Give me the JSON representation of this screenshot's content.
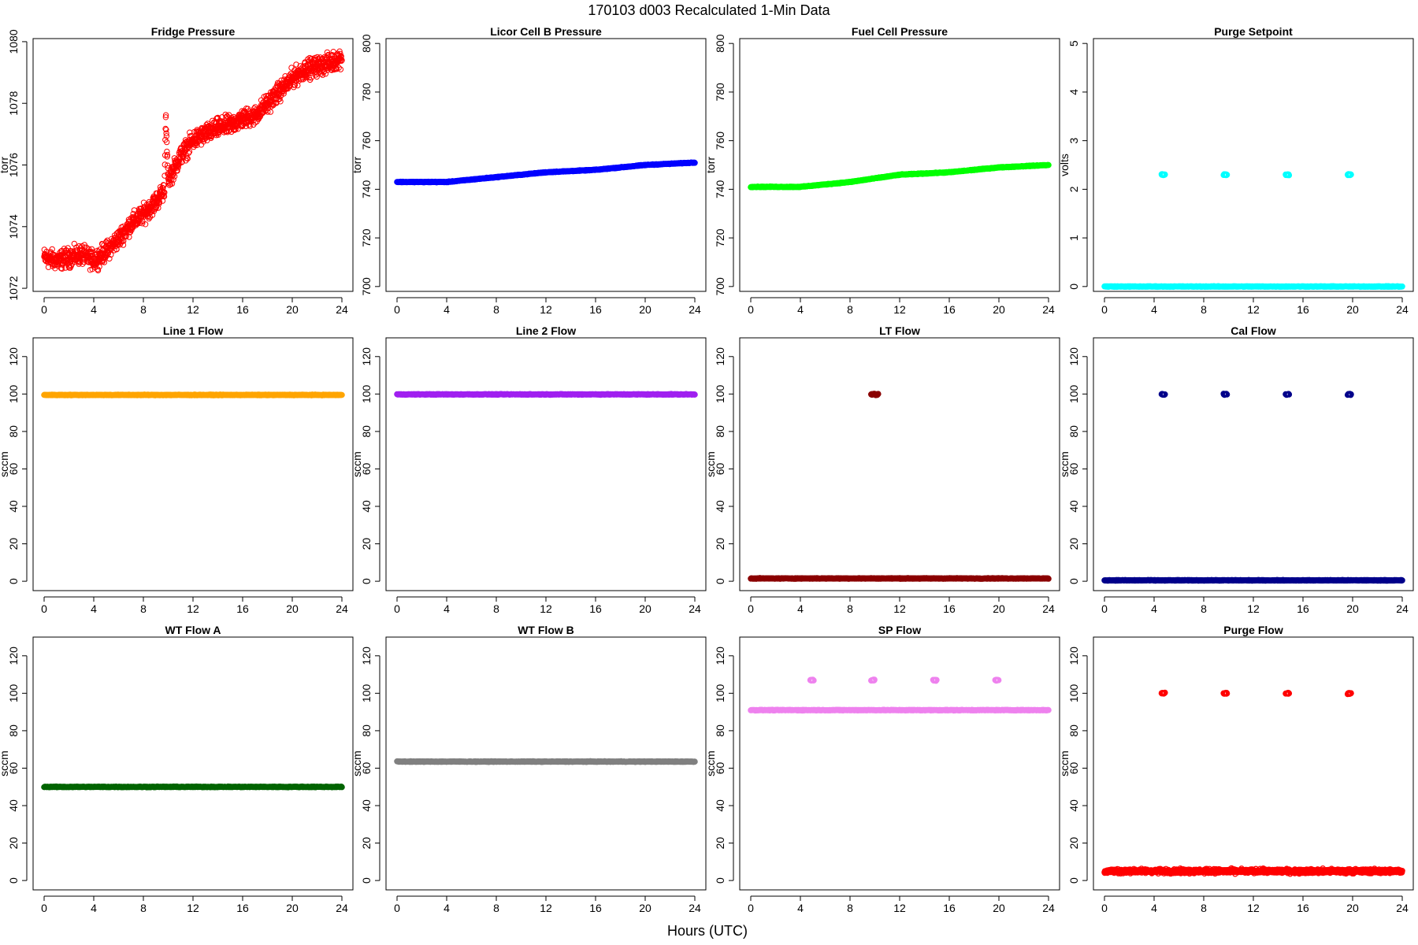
{
  "figure": {
    "title": "170103   d003   Recalculated 1-Min Data",
    "xlabel": "Hours (UTC)"
  },
  "chart_data": [
    {
      "type": "scatter",
      "title": "Fridge Pressure",
      "ylabel": "torr",
      "color": "#ff0000",
      "marker": "open-circle",
      "xlim": [
        0,
        24
      ],
      "ylim": [
        1071.9,
        1080.1
      ],
      "xticks": [
        0,
        4,
        8,
        12,
        16,
        20,
        24
      ],
      "yticks": [
        1072,
        1074,
        1076,
        1078,
        1080
      ],
      "series": [
        {
          "x": [
            0,
            1,
            2,
            3,
            4,
            5,
            6,
            7,
            8,
            9,
            9.7,
            9.8,
            10,
            11,
            12,
            13,
            14,
            15,
            16,
            17,
            18,
            19,
            20,
            21,
            22,
            23,
            24
          ],
          "values": [
            1073.0,
            1072.9,
            1073.0,
            1073.1,
            1072.9,
            1073.2,
            1073.6,
            1074.1,
            1074.4,
            1074.8,
            1075.2,
            1077.6,
            1075.5,
            1076.3,
            1076.8,
            1077.0,
            1077.2,
            1077.3,
            1077.5,
            1077.6,
            1078.0,
            1078.4,
            1078.8,
            1079.1,
            1079.2,
            1079.3,
            1079.5
          ]
        }
      ]
    },
    {
      "type": "scatter",
      "title": "Licor Cell B Pressure",
      "ylabel": "torr",
      "color": "#0000ff",
      "marker": "open-circle",
      "xlim": [
        0,
        24
      ],
      "ylim": [
        698,
        802
      ],
      "xticks": [
        0,
        4,
        8,
        12,
        16,
        20,
        24
      ],
      "yticks": [
        700,
        720,
        740,
        760,
        780,
        800
      ],
      "series": [
        {
          "x": [
            0,
            4,
            8,
            12,
            16,
            20,
            24
          ],
          "values": [
            743,
            743,
            745,
            747,
            748,
            750,
            751
          ]
        }
      ]
    },
    {
      "type": "scatter",
      "title": "Fuel Cell Pressure",
      "ylabel": "torr",
      "color": "#00ff00",
      "marker": "open-circle",
      "xlim": [
        0,
        24
      ],
      "ylim": [
        698,
        802
      ],
      "xticks": [
        0,
        4,
        8,
        12,
        16,
        20,
        24
      ],
      "yticks": [
        700,
        720,
        740,
        760,
        780,
        800
      ],
      "series": [
        {
          "x": [
            0,
            4,
            8,
            12,
            16,
            20,
            24
          ],
          "values": [
            741,
            741,
            743,
            746,
            747,
            749,
            750
          ]
        }
      ]
    },
    {
      "type": "scatter",
      "title": "Purge Setpoint",
      "ylabel": "volts",
      "color": "#00ffff",
      "marker": "open-circle",
      "xlim": [
        0,
        24
      ],
      "ylim": [
        -0.1,
        5.1
      ],
      "xticks": [
        0,
        4,
        8,
        12,
        16,
        20,
        24
      ],
      "yticks": [
        0,
        1,
        2,
        3,
        4,
        5
      ],
      "series": [
        {
          "x": [
            0,
            4,
            8,
            12,
            16,
            20,
            24
          ],
          "values": [
            0,
            0,
            0,
            0,
            0,
            0,
            0
          ]
        },
        {
          "x": [
            4.6,
            9.6,
            14.6,
            19.6
          ],
          "values": [
            2.3,
            2.3,
            2.3,
            2.3
          ]
        }
      ]
    },
    {
      "type": "scatter",
      "title": "Line 1 Flow",
      "ylabel": "sccm",
      "color": "#ffa500",
      "marker": "open-circle",
      "xlim": [
        0,
        24
      ],
      "ylim": [
        -5,
        130
      ],
      "xticks": [
        0,
        4,
        8,
        12,
        16,
        20,
        24
      ],
      "yticks": [
        0,
        20,
        40,
        60,
        80,
        100,
        120
      ],
      "series": [
        {
          "x": [
            0,
            24
          ],
          "values": [
            99.5,
            99.5
          ]
        }
      ]
    },
    {
      "type": "scatter",
      "title": "Line 2 Flow",
      "ylabel": "sccm",
      "color": "#a020f0",
      "marker": "open-circle",
      "xlim": [
        0,
        24
      ],
      "ylim": [
        -5,
        130
      ],
      "xticks": [
        0,
        4,
        8,
        12,
        16,
        20,
        24
      ],
      "yticks": [
        0,
        20,
        40,
        60,
        80,
        100,
        120
      ],
      "series": [
        {
          "x": [
            0,
            24
          ],
          "values": [
            99.8,
            99.8
          ]
        }
      ]
    },
    {
      "type": "scatter",
      "title": "LT Flow",
      "ylabel": "sccm",
      "color": "#8b0000",
      "marker": "open-circle",
      "xlim": [
        0,
        24
      ],
      "ylim": [
        -5,
        130
      ],
      "xticks": [
        0,
        4,
        8,
        12,
        16,
        20,
        24
      ],
      "yticks": [
        0,
        20,
        40,
        60,
        80,
        100,
        120
      ],
      "series": [
        {
          "x": [
            0,
            24
          ],
          "values": [
            1.5,
            1.5
          ]
        },
        {
          "x": [
            9.7,
            10.0
          ],
          "values": [
            99.8,
            99.8
          ]
        }
      ]
    },
    {
      "type": "scatter",
      "title": "Cal Flow",
      "ylabel": "sccm",
      "color": "#00008b",
      "marker": "open-circle",
      "xlim": [
        0,
        24
      ],
      "ylim": [
        -5,
        130
      ],
      "xticks": [
        0,
        4,
        8,
        12,
        16,
        20,
        24
      ],
      "yticks": [
        0,
        20,
        40,
        60,
        80,
        100,
        120
      ],
      "series": [
        {
          "x": [
            0,
            24
          ],
          "values": [
            0.5,
            0.5
          ]
        },
        {
          "x": [
            4.6,
            9.6,
            14.6,
            19.6
          ],
          "values": [
            99.8,
            99.8,
            99.8,
            99.8
          ]
        }
      ]
    },
    {
      "type": "scatter",
      "title": "WT Flow A",
      "ylabel": "sccm",
      "color": "#006400",
      "marker": "open-circle",
      "xlim": [
        0,
        24
      ],
      "ylim": [
        -5,
        130
      ],
      "xticks": [
        0,
        4,
        8,
        12,
        16,
        20,
        24
      ],
      "yticks": [
        0,
        20,
        40,
        60,
        80,
        100,
        120
      ],
      "series": [
        {
          "x": [
            0,
            24
          ],
          "values": [
            50,
            50
          ]
        }
      ]
    },
    {
      "type": "scatter",
      "title": "WT Flow B",
      "ylabel": "sccm",
      "color": "#808080",
      "marker": "open-circle",
      "xlim": [
        0,
        24
      ],
      "ylim": [
        -5,
        130
      ],
      "xticks": [
        0,
        4,
        8,
        12,
        16,
        20,
        24
      ],
      "yticks": [
        0,
        20,
        40,
        60,
        80,
        100,
        120
      ],
      "series": [
        {
          "x": [
            0,
            24
          ],
          "values": [
            63.5,
            63.5
          ]
        }
      ]
    },
    {
      "type": "scatter",
      "title": "SP Flow",
      "ylabel": "sccm",
      "color": "#ee82ee",
      "marker": "open-circle",
      "xlim": [
        0,
        24
      ],
      "ylim": [
        -5,
        130
      ],
      "xticks": [
        0,
        4,
        8,
        12,
        16,
        20,
        24
      ],
      "yticks": [
        0,
        20,
        40,
        60,
        80,
        100,
        120
      ],
      "series": [
        {
          "x": [
            0,
            24
          ],
          "values": [
            91,
            91
          ]
        },
        {
          "x": [
            4.8,
            9.7,
            14.7,
            19.7
          ],
          "values": [
            107,
            107,
            107,
            107
          ]
        }
      ]
    },
    {
      "type": "scatter",
      "title": "Purge Flow",
      "ylabel": "sccm",
      "color": "#ff0000",
      "marker": "open-circle",
      "xlim": [
        0,
        24
      ],
      "ylim": [
        -5,
        130
      ],
      "xticks": [
        0,
        4,
        8,
        12,
        16,
        20,
        24
      ],
      "yticks": [
        0,
        20,
        40,
        60,
        80,
        100,
        120
      ],
      "series": [
        {
          "x": [
            0,
            24
          ],
          "values": [
            5,
            5
          ]
        },
        {
          "x": [
            4.6,
            9.6,
            14.6,
            19.6
          ],
          "values": [
            100,
            100,
            100,
            100
          ]
        }
      ]
    }
  ]
}
